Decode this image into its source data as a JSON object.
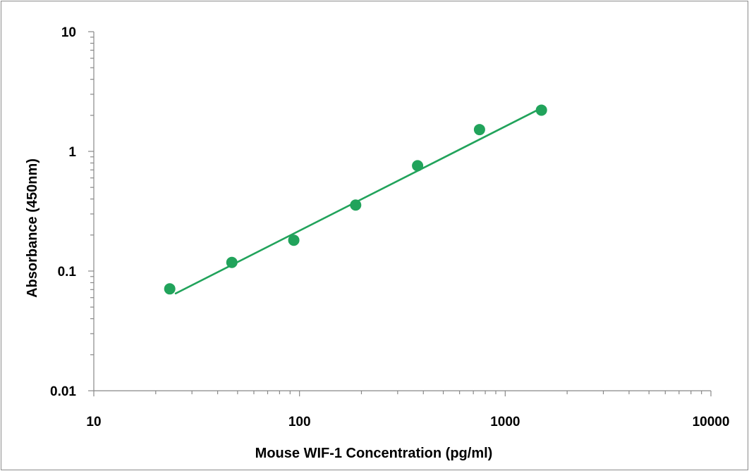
{
  "chart_data": {
    "type": "scatter",
    "title": "",
    "xlabel": "Mouse WIF-1 Concentration (pg/ml)",
    "ylabel": "Absorbance (450nm)",
    "x_scale": "log",
    "y_scale": "log",
    "xlim": [
      10,
      10000
    ],
    "ylim": [
      0.01,
      10
    ],
    "x_ticks": [
      "10",
      "100",
      "1000",
      "10000"
    ],
    "y_ticks": [
      "10",
      "1",
      "0.1",
      "0.01"
    ],
    "grid": false,
    "legend": "none",
    "color": "#21a35b",
    "series": [
      {
        "x": [
          23.4,
          46.9,
          93.8,
          187.5,
          375,
          750,
          1500
        ],
        "y": [
          0.071,
          0.118,
          0.181,
          0.356,
          0.759,
          1.52,
          2.21
        ]
      }
    ],
    "trendline": {
      "x": [
        25,
        1500
      ],
      "y": [
        0.065,
        2.3
      ]
    }
  }
}
